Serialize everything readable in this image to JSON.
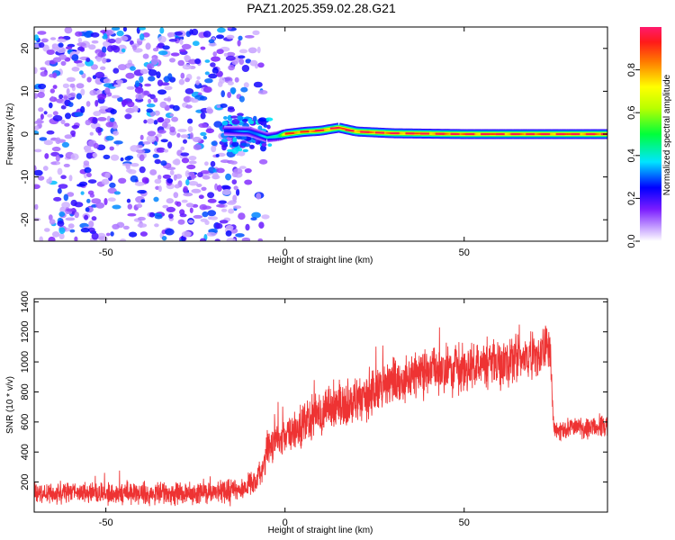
{
  "chart_data": [
    {
      "type": "heatmap",
      "title": "PAZ1.2025.359.02.28.G21",
      "xlabel": "Height of straight line (km)",
      "ylabel": "Frequency (Hz)",
      "xlim": [
        -70,
        90
      ],
      "ylim": [
        -25,
        25
      ],
      "xticks": [
        -50,
        0,
        50
      ],
      "yticks": [
        -20,
        -10,
        0,
        10,
        20
      ],
      "colorbar": {
        "label": "Normalized spectral amplitude",
        "range": [
          0,
          1
        ],
        "ticks": [
          "0.0",
          "0.2",
          "0.4",
          "0.6",
          "0.8"
        ]
      },
      "noise_region": {
        "x_from": -70,
        "x_to": -5,
        "freq_range": [
          -25,
          25
        ],
        "amplitude_range": [
          0.05,
          0.35
        ]
      },
      "signal_ridge": [
        {
          "x": -17,
          "freq": 0.8,
          "amp": 0.3
        },
        {
          "x": -10,
          "freq": 0.6,
          "amp": 0.35
        },
        {
          "x": -5,
          "freq": -0.8,
          "amp": 0.4
        },
        {
          "x": -2,
          "freq": -0.5,
          "amp": 0.5
        },
        {
          "x": 0,
          "freq": 0,
          "amp": 0.85
        },
        {
          "x": 5,
          "freq": 0.5,
          "amp": 0.85
        },
        {
          "x": 10,
          "freq": 0.8,
          "amp": 0.9
        },
        {
          "x": 15,
          "freq": 1.5,
          "amp": 0.9
        },
        {
          "x": 20,
          "freq": 0.6,
          "amp": 0.9
        },
        {
          "x": 30,
          "freq": 0.2,
          "amp": 0.9
        },
        {
          "x": 50,
          "freq": 0,
          "amp": 0.9
        },
        {
          "x": 70,
          "freq": 0,
          "amp": 0.9
        },
        {
          "x": 90,
          "freq": 0,
          "amp": 0.9
        }
      ]
    },
    {
      "type": "line",
      "title": "",
      "xlabel": "Height of straight line (km)",
      "ylabel": "SNR (10 * v/v)",
      "xlim": [
        -70,
        90
      ],
      "ylim": [
        0,
        1420
      ],
      "xticks": [
        -50,
        0,
        50
      ],
      "yticks": [
        200,
        400,
        600,
        800,
        1000,
        1200,
        1400
      ],
      "series": [
        {
          "name": "SNR",
          "color": "#ee3333",
          "x": [
            -70,
            -50,
            -30,
            -12,
            -8,
            -6,
            -5,
            0,
            10,
            20,
            30,
            40,
            50,
            60,
            70,
            74,
            75,
            76,
            80,
            90
          ],
          "values": [
            130,
            125,
            125,
            150,
            200,
            320,
            420,
            500,
            670,
            740,
            860,
            930,
            960,
            990,
            1050,
            1080,
            560,
            540,
            560,
            570
          ],
          "noise_amplitude": [
            70,
            70,
            75,
            80,
            90,
            110,
            120,
            130,
            150,
            160,
            160,
            160,
            160,
            160,
            160,
            160,
            60,
            60,
            70,
            70
          ]
        }
      ]
    }
  ],
  "colors": {
    "signal_red": "#ee3333",
    "noise_purple": "#7a1cff"
  }
}
